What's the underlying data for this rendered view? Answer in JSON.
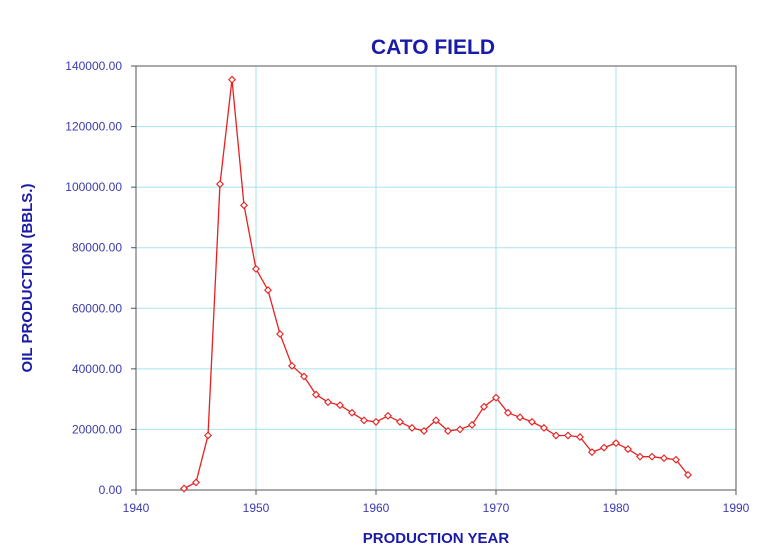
{
  "chart_data": {
    "type": "line",
    "title": "CATO FIELD",
    "xlabel": "PRODUCTION YEAR",
    "ylabel": "OIL PRODUCTION (BBLS.)",
    "xlim": [
      1940,
      1990
    ],
    "ylim": [
      0,
      140000
    ],
    "x_ticks": [
      "1940",
      "1950",
      "1960",
      "1970",
      "1980",
      "1990"
    ],
    "y_ticks": [
      "0.00",
      "20000.00",
      "40000.00",
      "60000.00",
      "80000.00",
      "100000.00",
      "120000.00",
      "140000.00"
    ],
    "grid": true,
    "colors": {
      "line": "#e82020",
      "title": "#1a1aa8",
      "grid": "#a8e4ec"
    },
    "series": [
      {
        "x": [
          1944,
          1945,
          1946,
          1947,
          1948,
          1949,
          1950,
          1951,
          1952,
          1953,
          1954,
          1955,
          1956,
          1957,
          1958,
          1959,
          1960,
          1961,
          1962,
          1963,
          1964,
          1965,
          1966,
          1967,
          1968,
          1969,
          1970,
          1971,
          1972,
          1973,
          1974,
          1975,
          1976,
          1977,
          1978,
          1979,
          1980,
          1981,
          1982,
          1983,
          1984,
          1985,
          1986
        ],
        "values": [
          500,
          2500,
          18000,
          101000,
          135500,
          94000,
          73000,
          66000,
          51500,
          41000,
          37500,
          31500,
          29000,
          28000,
          25500,
          23000,
          22500,
          24500,
          22500,
          20500,
          19500,
          23000,
          19500,
          20000,
          21500,
          27500,
          30500,
          25500,
          24000,
          22500,
          20500,
          18000,
          18000,
          17500,
          12500,
          14000,
          15500,
          13500,
          11000,
          11000,
          10500,
          10000,
          5000
        ]
      }
    ]
  }
}
